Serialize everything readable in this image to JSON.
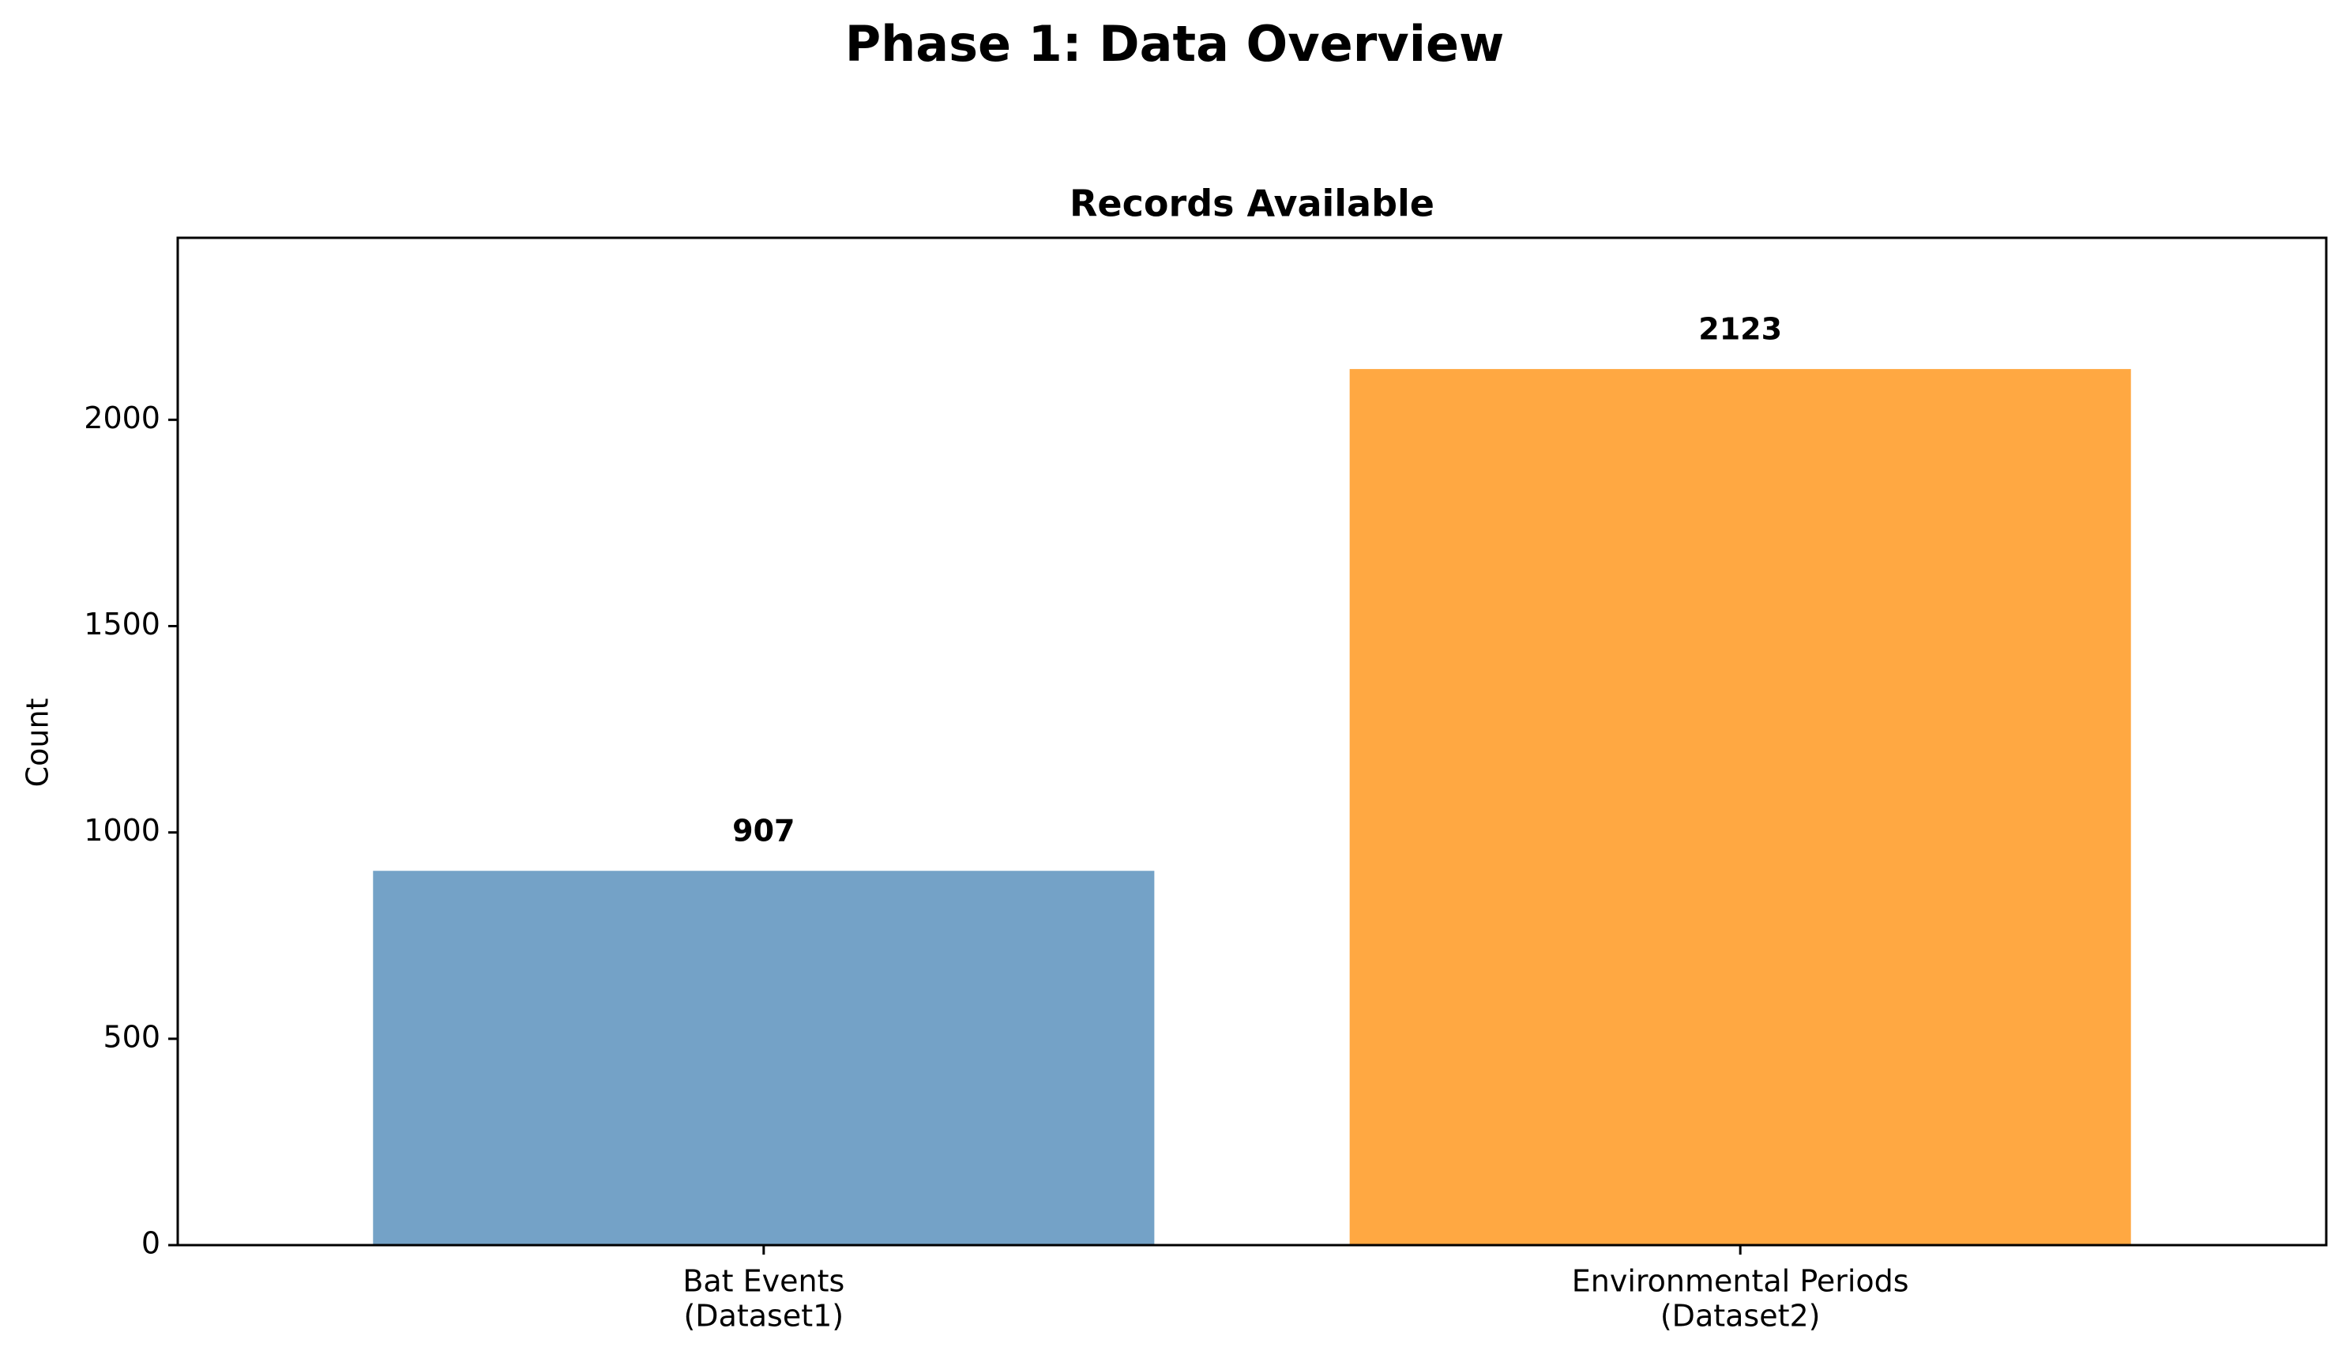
{
  "figure": {
    "suptitle": "Phase 1: Data Overview"
  },
  "chart_data": {
    "type": "bar",
    "title": "Records Available",
    "xlabel": "",
    "ylabel": "Count",
    "categories": [
      [
        "Bat Events",
        "(Dataset1)"
      ],
      [
        "Environmental Periods",
        "(Dataset2)"
      ]
    ],
    "values": [
      907,
      2123
    ],
    "value_labels": [
      "907",
      "2123"
    ],
    "bar_colors": [
      "#74a2c7",
      "#ffa842"
    ],
    "ylim": [
      0,
      2441
    ],
    "yticks": [
      0,
      500,
      1000,
      1500,
      2000
    ],
    "ytick_labels": [
      "0",
      "500",
      "1000",
      "1500",
      "2000"
    ],
    "grid": false,
    "legend": "none"
  }
}
